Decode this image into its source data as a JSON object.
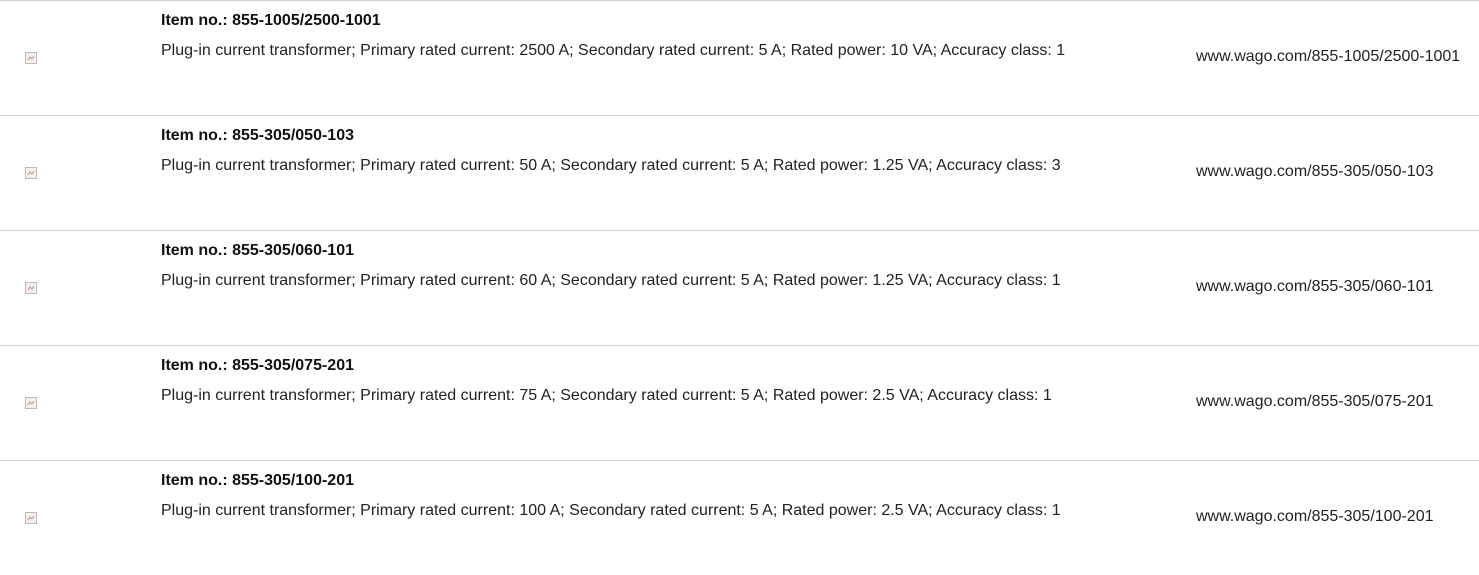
{
  "rows": [
    {
      "item": "Item no.: 855-1005/2500-1001",
      "description": "Plug-in current transformer; Primary rated current: 2500 A; Secondary rated current: 5 A; Rated power: 10 VA; Accuracy class: 1",
      "url": "www.wago.com/855-1005/2500-1001"
    },
    {
      "item": "Item no.: 855-305/050-103",
      "description": "Plug-in current transformer; Primary rated current: 50 A; Secondary rated current: 5 A; Rated power: 1.25 VA; Accuracy class: 3",
      "url": "www.wago.com/855-305/050-103"
    },
    {
      "item": "Item no.: 855-305/060-101",
      "description": "Plug-in current transformer; Primary rated current: 60 A; Secondary rated current: 5 A; Rated power: 1.25 VA; Accuracy class: 1",
      "url": "www.wago.com/855-305/060-101"
    },
    {
      "item": "Item no.: 855-305/075-201",
      "description": "Plug-in current transformer; Primary rated current: 75 A; Secondary rated current: 5 A; Rated power: 2.5 VA; Accuracy class: 1",
      "url": "www.wago.com/855-305/075-201"
    },
    {
      "item": "Item no.: 855-305/100-201",
      "description": "Plug-in current transformer; Primary rated current: 100 A; Secondary rated current: 5 A; Rated power: 2.5 VA; Accuracy class: 1",
      "url": "www.wago.com/855-305/100-201"
    }
  ]
}
